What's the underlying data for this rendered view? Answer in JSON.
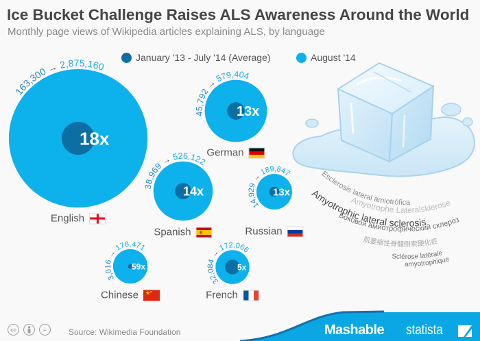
{
  "header": {
    "title": "Ice Bucket Challenge Raises ALS Awareness Around the World",
    "subtitle": "Monthly page views of Wikipedia articles explaining ALS, by language"
  },
  "legend": [
    {
      "label": "January '13 - July '14 (Average)",
      "color": "#0b6fa4"
    },
    {
      "label": "August '14",
      "color": "#0db1ec"
    }
  ],
  "colors": {
    "before_value_text": "#2a86c0",
    "after_value_text": "#1aa9e4",
    "arrow_text": "#555555",
    "ratio_text": "#ffffff",
    "footer_band": "#0aa7e4",
    "footer_band_edge": "#0f72ad"
  },
  "chart_data": {
    "type": "scatter",
    "subtype": "nested-bubble",
    "title": "Ice Bucket Challenge Raises ALS Awareness Around the World",
    "subtitle": "Monthly page views of Wikipedia articles explaining ALS, by language",
    "xlabel": "",
    "ylabel": "",
    "grid": false,
    "legend_position": "top",
    "categories": [
      "English",
      "German",
      "Spanish",
      "Russian",
      "Chinese",
      "French"
    ],
    "flag_icons": [
      "england-flag",
      "germany-flag",
      "spain-flag",
      "russia-flag",
      "china-flag",
      "france-flag"
    ],
    "series": [
      {
        "name": "January '13 - July '14 (Average)",
        "values": [
          163300,
          45792,
          38969,
          14929,
          3016,
          32084
        ]
      },
      {
        "name": "August '14",
        "values": [
          2875160,
          579404,
          526122,
          189847,
          178471,
          172066
        ]
      }
    ],
    "growth_labels": [
      "18x",
      "13x",
      "14x",
      "13x",
      "59x",
      "5x"
    ],
    "arrow": "→"
  },
  "illustration": {
    "icon": "ice-cube",
    "als_names": [
      "Esclerosis lateral amiotrófica",
      "Amyotrophe Lateralsklerose",
      "Amyotrophic lateral sclerosis",
      "Боковой амиотрофический склероз",
      "肌萎缩性脊髓侧索硬化症",
      "Sclérose latérale",
      "amyotrophique"
    ]
  },
  "footer": {
    "license_icons": [
      {
        "name": "cc-icon",
        "glyph": "cc"
      },
      {
        "name": "attribution-icon",
        "glyph": "👤"
      },
      {
        "name": "no-derivatives-icon",
        "glyph": "="
      }
    ],
    "source": "Source: Wikimedia Foundation",
    "brand_left": "Mashable",
    "brand_right": "statista"
  }
}
